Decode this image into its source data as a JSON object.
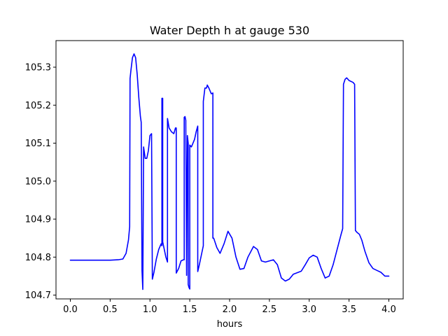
{
  "chart_data": {
    "type": "line",
    "title": "Water Depth h at gauge 530",
    "xlabel": "hours",
    "ylabel": "",
    "xlim": [
      -0.18,
      4.18
    ],
    "ylim": [
      104.69,
      105.37
    ],
    "xticks": [
      0.0,
      0.5,
      1.0,
      1.5,
      2.0,
      2.5,
      3.0,
      3.5,
      4.0
    ],
    "xtick_labels": [
      "0.0",
      "0.5",
      "1.0",
      "1.5",
      "2.0",
      "2.5",
      "3.0",
      "3.5",
      "4.0"
    ],
    "yticks": [
      104.7,
      104.8,
      104.9,
      105.0,
      105.1,
      105.2,
      105.3
    ],
    "ytick_labels": [
      "104.7",
      "104.8",
      "104.9",
      "105.0",
      "105.1",
      "105.2",
      "105.3"
    ],
    "grid": false,
    "series": [
      {
        "color": "#0000ff",
        "x": [
          0.0,
          0.3,
          0.5,
          0.6,
          0.66,
          0.7,
          0.73,
          0.745,
          0.75,
          0.76,
          0.78,
          0.8,
          0.82,
          0.84,
          0.86,
          0.88,
          0.89,
          0.9,
          0.9,
          0.91,
          0.92,
          0.92,
          0.94,
          0.96,
          0.98,
          1.0,
          1.02,
          1.03,
          1.03,
          1.05,
          1.08,
          1.11,
          1.14,
          1.15,
          1.15,
          1.16,
          1.16,
          1.18,
          1.2,
          1.22,
          1.22,
          1.24,
          1.27,
          1.3,
          1.32,
          1.33,
          1.33,
          1.36,
          1.39,
          1.42,
          1.43,
          1.43,
          1.44,
          1.45,
          1.45,
          1.46,
          1.47,
          1.48,
          1.48,
          1.49,
          1.5,
          1.5,
          1.52,
          1.54,
          1.56,
          1.58,
          1.6,
          1.6,
          1.62,
          1.65,
          1.67,
          1.67,
          1.69,
          1.71,
          1.72,
          1.74,
          1.75,
          1.77,
          1.79,
          1.79,
          1.8,
          1.8,
          1.84,
          1.88,
          1.93,
          1.98,
          2.03,
          2.08,
          2.13,
          2.18,
          2.23,
          2.3,
          2.35,
          2.4,
          2.45,
          2.5,
          2.55,
          2.6,
          2.65,
          2.7,
          2.75,
          2.8,
          2.9,
          2.95,
          3.0,
          3.05,
          3.1,
          3.15,
          3.2,
          3.25,
          3.3,
          3.35,
          3.4,
          3.42,
          3.43,
          3.45,
          3.47,
          3.5,
          3.55,
          3.57,
          3.58,
          3.6,
          3.63,
          3.66,
          3.7,
          3.75,
          3.8,
          3.85,
          3.9,
          3.95,
          4.0
        ],
        "y": [
          104.792,
          104.792,
          104.792,
          104.793,
          104.795,
          104.81,
          104.845,
          104.88,
          105.27,
          105.29,
          105.325,
          105.335,
          105.325,
          105.28,
          105.22,
          105.17,
          105.155,
          104.77,
          104.765,
          104.715,
          105.09,
          105.09,
          105.06,
          105.06,
          105.08,
          105.12,
          105.125,
          104.742,
          104.742,
          104.76,
          104.795,
          104.82,
          104.835,
          104.83,
          105.218,
          105.218,
          104.84,
          104.82,
          104.8,
          104.787,
          105.165,
          105.14,
          105.13,
          105.125,
          105.14,
          105.14,
          104.758,
          104.77,
          104.79,
          104.793,
          104.793,
          105.168,
          105.17,
          105.16,
          105.15,
          104.752,
          105.12,
          105.1,
          104.728,
          104.72,
          104.716,
          105.095,
          105.09,
          105.1,
          105.11,
          105.13,
          105.145,
          104.762,
          104.78,
          104.81,
          104.83,
          105.21,
          105.245,
          105.245,
          105.253,
          105.245,
          105.24,
          105.23,
          105.232,
          104.85,
          104.85,
          104.85,
          104.825,
          104.81,
          104.835,
          104.868,
          104.85,
          104.8,
          104.768,
          104.77,
          104.8,
          104.828,
          104.82,
          104.79,
          104.787,
          104.79,
          104.793,
          104.78,
          104.745,
          104.737,
          104.742,
          104.755,
          104.763,
          104.78,
          104.798,
          104.805,
          104.8,
          104.77,
          104.745,
          104.75,
          104.78,
          104.82,
          104.86,
          104.875,
          105.255,
          105.268,
          105.272,
          105.265,
          105.26,
          105.255,
          104.87,
          104.865,
          104.86,
          104.845,
          104.815,
          104.785,
          104.77,
          104.765,
          104.76,
          104.75,
          104.75
        ]
      }
    ]
  }
}
